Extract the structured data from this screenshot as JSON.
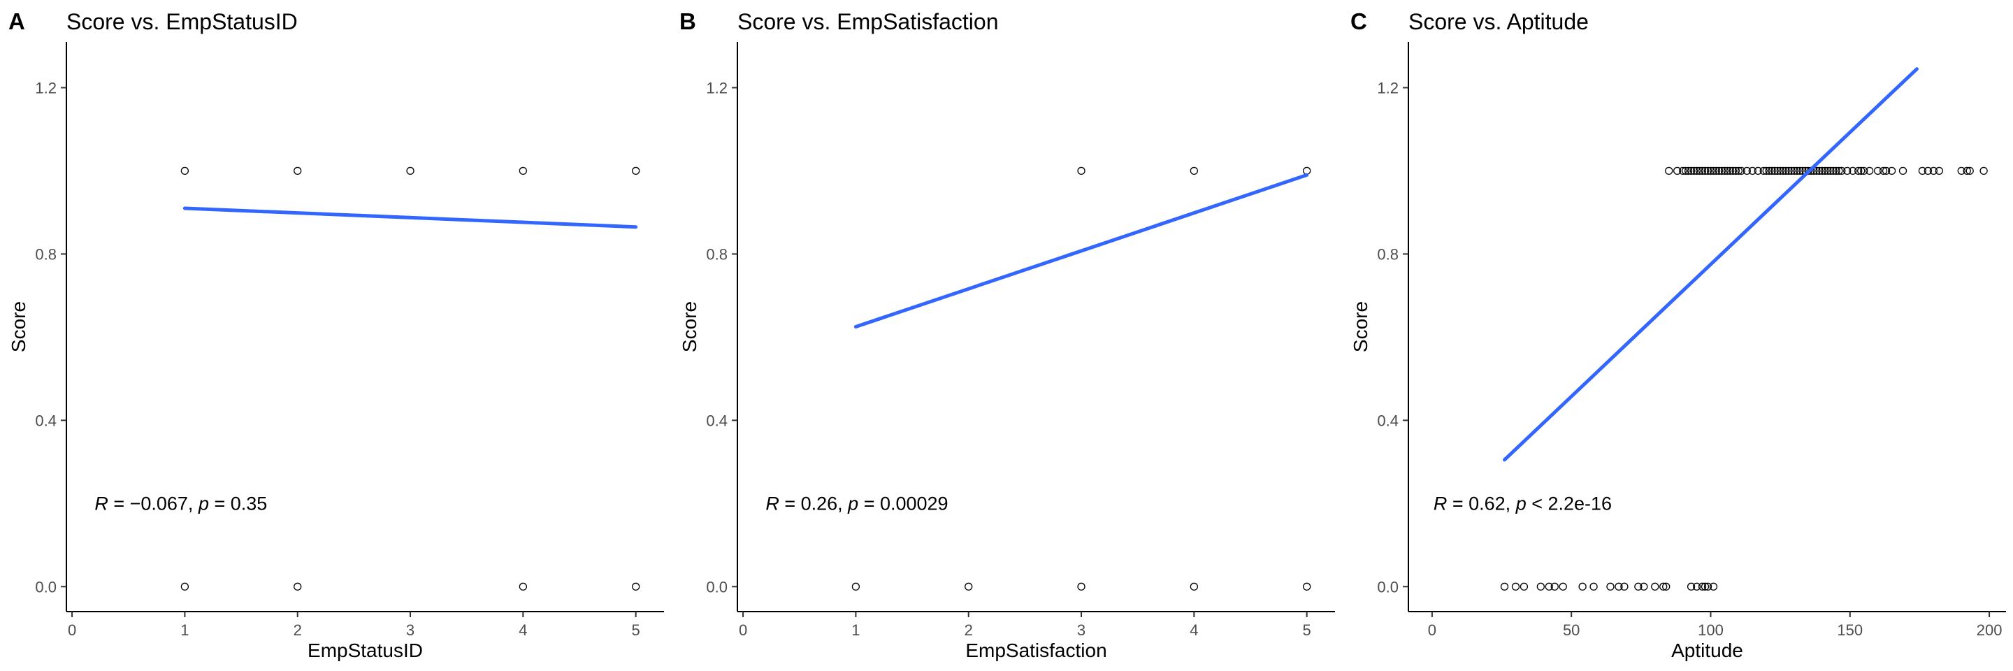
{
  "colors": {
    "fit_line": "#3366ff",
    "points": "#000000",
    "tick_text": "#4d4d4d"
  },
  "chart_data": [
    {
      "panel": "A",
      "type": "scatter",
      "title": "Score vs. EmpStatusID",
      "xlabel": "EmpStatusID",
      "ylabel": "Score",
      "xlim": [
        -0.05,
        5.25
      ],
      "ylim": [
        -0.06,
        1.31
      ],
      "xticks": [
        0,
        1,
        2,
        3,
        4,
        5
      ],
      "yticks": [
        0.0,
        0.4,
        0.8,
        1.2
      ],
      "grid": false,
      "points": [
        [
          1,
          1
        ],
        [
          2,
          1
        ],
        [
          3,
          1
        ],
        [
          4,
          1
        ],
        [
          5,
          1
        ],
        [
          1,
          0
        ],
        [
          2,
          0
        ],
        [
          4,
          0
        ],
        [
          5,
          0
        ]
      ],
      "fit": {
        "x": [
          1,
          5
        ],
        "y": [
          0.91,
          0.865
        ]
      },
      "annotation": {
        "r": "R",
        "r_val": " = −0.067, ",
        "p": "p",
        "p_val": " = 0.35",
        "x": 0.2,
        "y": 0.2
      }
    },
    {
      "panel": "B",
      "type": "scatter",
      "title": "Score vs. EmpSatisfaction",
      "xlabel": "EmpSatisfaction",
      "ylabel": "Score",
      "xlim": [
        -0.05,
        5.25
      ],
      "ylim": [
        -0.06,
        1.31
      ],
      "xticks": [
        0,
        1,
        2,
        3,
        4,
        5
      ],
      "yticks": [
        0.0,
        0.4,
        0.8,
        1.2
      ],
      "grid": false,
      "points": [
        [
          3,
          1
        ],
        [
          4,
          1
        ],
        [
          5,
          1
        ],
        [
          1,
          0
        ],
        [
          2,
          0
        ],
        [
          3,
          0
        ],
        [
          4,
          0
        ],
        [
          5,
          0
        ]
      ],
      "fit": {
        "x": [
          1,
          5
        ],
        "y": [
          0.625,
          0.99
        ]
      },
      "annotation": {
        "r": "R",
        "r_val": " = 0.26, ",
        "p": "p",
        "p_val": " = 0.00029",
        "x": 0.2,
        "y": 0.2
      }
    },
    {
      "panel": "C",
      "type": "scatter",
      "title": "Score vs. Aptitude",
      "xlabel": "Aptitude",
      "ylabel": "Score",
      "xlim": [
        -8.5,
        206
      ],
      "ylim": [
        -0.06,
        1.31
      ],
      "xticks": [
        0,
        50,
        100,
        150,
        200
      ],
      "yticks": [
        0.0,
        0.4,
        0.8,
        1.2
      ],
      "grid": false,
      "points": [
        [
          85,
          1
        ],
        [
          88,
          1
        ],
        [
          90,
          1
        ],
        [
          91,
          1
        ],
        [
          92,
          1
        ],
        [
          93,
          1
        ],
        [
          94,
          1
        ],
        [
          95,
          1
        ],
        [
          96,
          1
        ],
        [
          97,
          1
        ],
        [
          98,
          1
        ],
        [
          99,
          1
        ],
        [
          100,
          1
        ],
        [
          101,
          1
        ],
        [
          102,
          1
        ],
        [
          103,
          1
        ],
        [
          104,
          1
        ],
        [
          105,
          1
        ],
        [
          106,
          1
        ],
        [
          107,
          1
        ],
        [
          108,
          1
        ],
        [
          109,
          1
        ],
        [
          110,
          1
        ],
        [
          111,
          1
        ],
        [
          113,
          1
        ],
        [
          115,
          1
        ],
        [
          117,
          1
        ],
        [
          119,
          1
        ],
        [
          120,
          1
        ],
        [
          121,
          1
        ],
        [
          122,
          1
        ],
        [
          123,
          1
        ],
        [
          124,
          1
        ],
        [
          125,
          1
        ],
        [
          126,
          1
        ],
        [
          127,
          1
        ],
        [
          128,
          1
        ],
        [
          129,
          1
        ],
        [
          130,
          1
        ],
        [
          131,
          1
        ],
        [
          132,
          1
        ],
        [
          133,
          1
        ],
        [
          134,
          1
        ],
        [
          135,
          1
        ],
        [
          136,
          1
        ],
        [
          137,
          1
        ],
        [
          138,
          1
        ],
        [
          139,
          1
        ],
        [
          140,
          1
        ],
        [
          141,
          1
        ],
        [
          142,
          1
        ],
        [
          143,
          1
        ],
        [
          144,
          1
        ],
        [
          145,
          1
        ],
        [
          146,
          1
        ],
        [
          147,
          1
        ],
        [
          149,
          1
        ],
        [
          151,
          1
        ],
        [
          153,
          1
        ],
        [
          154,
          1
        ],
        [
          155,
          1
        ],
        [
          157,
          1
        ],
        [
          160,
          1
        ],
        [
          162,
          1
        ],
        [
          163,
          1
        ],
        [
          165,
          1
        ],
        [
          169,
          1
        ],
        [
          176,
          1
        ],
        [
          178,
          1
        ],
        [
          180,
          1
        ],
        [
          182,
          1
        ],
        [
          190,
          1
        ],
        [
          192,
          1
        ],
        [
          193,
          1
        ],
        [
          198,
          1
        ],
        [
          26,
          0
        ],
        [
          30,
          0
        ],
        [
          33,
          0
        ],
        [
          39,
          0
        ],
        [
          42,
          0
        ],
        [
          44,
          0
        ],
        [
          47,
          0
        ],
        [
          54,
          0
        ],
        [
          58,
          0
        ],
        [
          64,
          0
        ],
        [
          67,
          0
        ],
        [
          69,
          0
        ],
        [
          74,
          0
        ],
        [
          76,
          0
        ],
        [
          80,
          0
        ],
        [
          83,
          0
        ],
        [
          84,
          0
        ],
        [
          93,
          0
        ],
        [
          95,
          0
        ],
        [
          97,
          0
        ],
        [
          98,
          0
        ],
        [
          99,
          0
        ],
        [
          101,
          0
        ]
      ],
      "fit": {
        "x": [
          26,
          174
        ],
        "y": [
          0.305,
          1.245
        ]
      },
      "annotation": {
        "r": "R",
        "r_val": " = 0.62, ",
        "p": "p",
        "p_val": " < 2.2e-16",
        "x": 0.5,
        "y": 0.2
      }
    }
  ]
}
